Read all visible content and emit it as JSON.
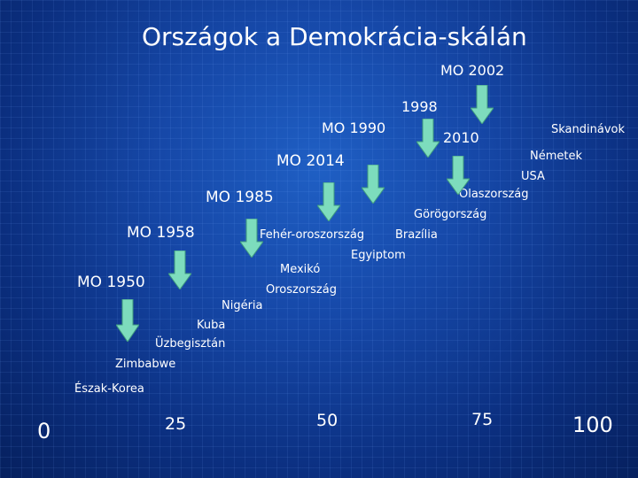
{
  "title": "Országok a Demokrácia-skálán",
  "colors": {
    "background": "#1648a8",
    "arrow_fill": "#7ddcbd",
    "arrow_stroke": "#3f9a7e"
  },
  "hungary_labels": {
    "mo2002": "MO 2002",
    "y1998": "1998",
    "mo1990": "MO 1990",
    "y2010": "2010",
    "mo2014": "MO 2014",
    "mo1985": "MO 1985",
    "mo1958": "MO 1958",
    "mo1950": "MO 1950"
  },
  "countries": {
    "skandinavok": "Skandinávok",
    "nemetek": "Németek",
    "usa": "USA",
    "olaszorszag": "Olaszország",
    "gorogorszag": "Görögország",
    "feheroroszorszag": "Fehér-oroszország",
    "brazilia": "Brazília",
    "egyiptom": "Egyiptom",
    "mexiko": "Mexikó",
    "oroszorszag": "Oroszország",
    "nigeria": "Nigéria",
    "kuba": "Kuba",
    "uzbegisztan": "Üzbegisztán",
    "zimbabwe": "Zimbabwe",
    "eszakkorea": "Észak-Korea"
  },
  "axis": {
    "t0": "0",
    "t25": "25",
    "t50": "50",
    "t75": "75",
    "t100": "100"
  }
}
